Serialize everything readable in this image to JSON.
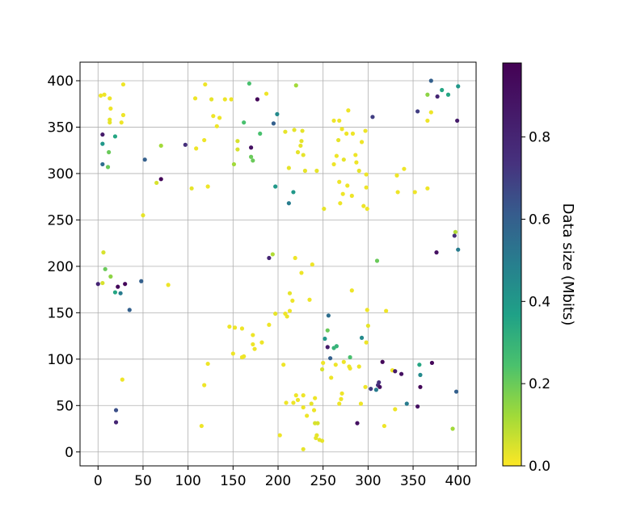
{
  "chart_data": {
    "type": "scatter",
    "title": "",
    "xlabel": "",
    "ylabel": "",
    "xlim": [
      -20,
      420
    ],
    "ylim": [
      -15,
      420
    ],
    "xticks": [
      0,
      50,
      100,
      150,
      200,
      250,
      300,
      350,
      400
    ],
    "yticks": [
      0,
      50,
      100,
      150,
      200,
      250,
      300,
      350,
      400
    ],
    "grid": true,
    "colormap": "viridis_r",
    "colorbar": {
      "label": "Data size (Mbits)",
      "min": 0.0,
      "max": 0.98,
      "ticks": [
        0.0,
        0.2,
        0.4,
        0.6,
        0.8
      ],
      "tick_labels": [
        "0.0",
        "0.2",
        "0.4",
        "0.6",
        "0.8"
      ]
    },
    "points": [
      [
        3,
        384,
        0.02
      ],
      [
        7,
        385,
        0.02
      ],
      [
        13,
        381,
        0.02
      ],
      [
        28,
        396,
        0.02
      ],
      [
        14,
        370,
        0.02
      ],
      [
        28,
        363,
        0.02
      ],
      [
        13,
        358,
        0.03
      ],
      [
        13,
        355,
        0.03
      ],
      [
        26,
        355,
        0.02
      ],
      [
        5,
        342,
        0.85
      ],
      [
        19,
        340,
        0.35
      ],
      [
        5,
        332,
        0.4
      ],
      [
        12,
        323,
        0.2
      ],
      [
        5,
        310,
        0.55
      ],
      [
        11,
        307,
        0.2
      ],
      [
        52,
        315,
        0.6
      ],
      [
        70,
        330,
        0.12
      ],
      [
        70,
        294,
        0.95
      ],
      [
        65,
        290,
        0.05
      ],
      [
        50,
        255,
        0.03
      ],
      [
        97,
        331,
        0.75
      ],
      [
        108,
        381,
        0.02
      ],
      [
        119,
        396,
        0.02
      ],
      [
        126,
        380,
        0.03
      ],
      [
        141,
        380,
        0.02
      ],
      [
        148,
        380,
        0.02
      ],
      [
        128,
        362,
        0.02
      ],
      [
        135,
        360,
        0.02
      ],
      [
        132,
        351,
        0.02
      ],
      [
        118,
        336,
        0.02
      ],
      [
        109,
        327,
        0.02
      ],
      [
        104,
        284,
        0.03
      ],
      [
        122,
        286,
        0.02
      ],
      [
        151,
        310,
        0.12
      ],
      [
        155,
        335,
        0.05
      ],
      [
        155,
        326,
        0.05
      ],
      [
        162,
        355,
        0.25
      ],
      [
        168,
        397,
        0.25
      ],
      [
        170,
        328,
        0.9
      ],
      [
        170,
        318,
        0.2
      ],
      [
        172,
        314,
        0.2
      ],
      [
        177,
        380,
        0.95
      ],
      [
        180,
        343,
        0.25
      ],
      [
        187,
        386,
        0.02
      ],
      [
        195,
        354,
        0.6
      ],
      [
        199,
        364,
        0.45
      ],
      [
        197,
        286,
        0.4
      ],
      [
        212,
        268,
        0.5
      ],
      [
        217,
        280,
        0.4
      ],
      [
        220,
        395,
        0.12
      ],
      [
        208,
        345,
        0.03
      ],
      [
        218,
        347,
        0.03
      ],
      [
        227,
        346,
        0.03
      ],
      [
        226,
        335,
        0.03
      ],
      [
        225,
        330,
        0.03
      ],
      [
        222,
        323,
        0.03
      ],
      [
        228,
        320,
        0.03
      ],
      [
        212,
        306,
        0.03
      ],
      [
        230,
        303,
        0.03
      ],
      [
        243,
        303,
        0.03
      ],
      [
        251,
        262,
        0.03
      ],
      [
        262,
        357,
        0.02
      ],
      [
        268,
        357,
        0.02
      ],
      [
        271,
        348,
        0.02
      ],
      [
        276,
        343,
        0.02
      ],
      [
        283,
        343,
        0.02
      ],
      [
        278,
        368,
        0.02
      ],
      [
        267,
        336,
        0.03
      ],
      [
        265,
        319,
        0.02
      ],
      [
        262,
        310,
        0.02
      ],
      [
        273,
        315,
        0.03
      ],
      [
        286,
        320,
        0.02
      ],
      [
        287,
        312,
        0.02
      ],
      [
        293,
        334,
        0.02
      ],
      [
        297,
        346,
        0.02
      ],
      [
        290,
        303,
        0.03
      ],
      [
        298,
        299,
        0.02
      ],
      [
        268,
        291,
        0.02
      ],
      [
        277,
        287,
        0.02
      ],
      [
        272,
        278,
        0.02
      ],
      [
        282,
        276,
        0.02
      ],
      [
        269,
        268,
        0.02
      ],
      [
        295,
        265,
        0.02
      ],
      [
        299,
        262,
        0.02
      ],
      [
        298,
        285,
        0.02
      ],
      [
        305,
        361,
        0.7
      ],
      [
        332,
        298,
        0.02
      ],
      [
        340,
        305,
        0.02
      ],
      [
        333,
        280,
        0.02
      ],
      [
        352,
        280,
        0.02
      ],
      [
        355,
        367,
        0.7
      ],
      [
        366,
        357,
        0.02
      ],
      [
        370,
        366,
        0.02
      ],
      [
        366,
        385,
        0.15
      ],
      [
        370,
        400,
        0.6
      ],
      [
        377,
        383,
        0.8
      ],
      [
        382,
        390,
        0.35
      ],
      [
        389,
        385,
        0.35
      ],
      [
        400,
        394,
        0.4
      ],
      [
        399,
        357,
        0.85
      ],
      [
        366,
        284,
        0.02
      ],
      [
        397,
        237,
        0.1
      ],
      [
        396,
        233,
        0.75
      ],
      [
        400,
        218,
        0.5
      ],
      [
        376,
        215,
        0.9
      ],
      [
        6,
        215,
        0.05
      ],
      [
        8,
        197,
        0.2
      ],
      [
        14,
        189,
        0.15
      ],
      [
        5,
        182,
        0.05
      ],
      [
        0,
        181,
        0.8
      ],
      [
        19,
        172,
        0.35
      ],
      [
        22,
        178,
        0.95
      ],
      [
        25,
        171,
        0.5
      ],
      [
        30,
        181,
        0.95
      ],
      [
        35,
        153,
        0.6
      ],
      [
        48,
        184,
        0.6
      ],
      [
        78,
        180,
        0.02
      ],
      [
        20,
        45,
        0.65
      ],
      [
        20,
        32,
        0.8
      ],
      [
        27,
        78,
        0.02
      ],
      [
        115,
        28,
        0.02
      ],
      [
        118,
        72,
        0.02
      ],
      [
        122,
        95,
        0.02
      ],
      [
        146,
        135,
        0.02
      ],
      [
        152,
        134,
        0.02
      ],
      [
        160,
        133,
        0.02
      ],
      [
        150,
        106,
        0.02
      ],
      [
        160,
        102,
        0.02
      ],
      [
        162,
        103,
        0.02
      ],
      [
        172,
        126,
        0.02
      ],
      [
        172,
        116,
        0.02
      ],
      [
        174,
        111,
        0.02
      ],
      [
        182,
        118,
        0.02
      ],
      [
        190,
        137,
        0.02
      ],
      [
        190,
        209,
        0.8
      ],
      [
        194,
        213,
        0.1
      ],
      [
        219,
        209,
        0.02
      ],
      [
        226,
        193,
        0.02
      ],
      [
        238,
        202,
        0.02
      ],
      [
        213,
        171,
        0.03
      ],
      [
        216,
        163,
        0.02
      ],
      [
        213,
        152,
        0.02
      ],
      [
        210,
        146,
        0.02
      ],
      [
        197,
        149,
        0.03
      ],
      [
        208,
        149,
        0.02
      ],
      [
        235,
        164,
        0.02
      ],
      [
        202,
        18,
        0.02
      ],
      [
        206,
        94,
        0.02
      ],
      [
        209,
        53,
        0.02
      ],
      [
        217,
        53,
        0.02
      ],
      [
        220,
        61,
        0.02
      ],
      [
        222,
        56,
        0.02
      ],
      [
        228,
        61,
        0.02
      ],
      [
        228,
        48,
        0.02
      ],
      [
        232,
        39,
        0.02
      ],
      [
        237,
        52,
        0.03
      ],
      [
        240,
        45,
        0.02
      ],
      [
        241,
        58,
        0.02
      ],
      [
        228,
        3,
        0.03
      ],
      [
        241,
        31,
        0.05
      ],
      [
        244,
        31,
        0.05
      ],
      [
        243,
        18,
        0.03
      ],
      [
        246,
        13,
        0.03
      ],
      [
        249,
        12,
        0.03
      ],
      [
        242,
        15,
        0.03
      ],
      [
        249,
        89,
        0.05
      ],
      [
        250,
        96,
        0.02
      ],
      [
        252,
        122,
        0.4
      ],
      [
        255,
        113,
        0.85
      ],
      [
        255,
        131,
        0.2
      ],
      [
        256,
        147,
        0.55
      ],
      [
        258,
        101,
        0.6
      ],
      [
        259,
        80,
        0.02
      ],
      [
        262,
        112,
        0.3
      ],
      [
        265,
        114,
        0.3
      ],
      [
        264,
        94,
        0.02
      ],
      [
        268,
        52,
        0.02
      ],
      [
        270,
        57,
        0.02
      ],
      [
        271,
        63,
        0.02
      ],
      [
        273,
        97,
        0.02
      ],
      [
        279,
        92,
        0.02
      ],
      [
        280,
        102,
        0.25
      ],
      [
        280,
        90,
        0.02
      ],
      [
        282,
        174,
        0.02
      ],
      [
        288,
        31,
        0.9
      ],
      [
        290,
        92,
        0.02
      ],
      [
        292,
        52,
        0.02
      ],
      [
        293,
        123,
        0.45
      ],
      [
        297,
        70,
        0.02
      ],
      [
        298,
        118,
        0.02
      ],
      [
        299,
        153,
        0.02
      ],
      [
        300,
        136,
        0.03
      ],
      [
        303,
        68,
        0.7
      ],
      [
        309,
        67,
        0.5
      ],
      [
        310,
        206,
        0.2
      ],
      [
        311,
        72,
        0.75
      ],
      [
        312,
        75,
        0.75
      ],
      [
        313,
        70,
        0.9
      ],
      [
        316,
        97,
        0.95
      ],
      [
        320,
        152,
        0.02
      ],
      [
        318,
        28,
        0.02
      ],
      [
        327,
        88,
        0.02
      ],
      [
        330,
        46,
        0.02
      ],
      [
        330,
        87,
        0.85
      ],
      [
        337,
        84,
        0.9
      ],
      [
        343,
        52,
        0.5
      ],
      [
        355,
        49,
        0.9
      ],
      [
        357,
        94,
        0.35
      ],
      [
        358,
        83,
        0.45
      ],
      [
        358,
        70,
        0.95
      ],
      [
        371,
        96,
        0.95
      ],
      [
        394,
        25,
        0.12
      ],
      [
        398,
        65,
        0.6
      ]
    ]
  }
}
